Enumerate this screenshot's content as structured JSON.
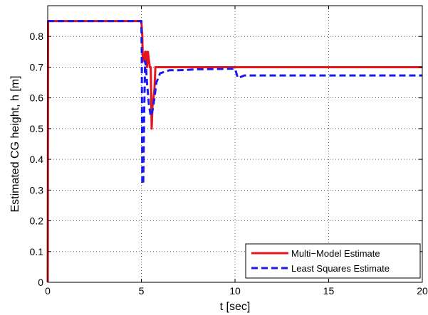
{
  "chart_data": {
    "type": "line",
    "title": "",
    "xlabel": "t [sec]",
    "ylabel": "Estimated CG height,  h [m]",
    "xlim": [
      0,
      20
    ],
    "ylim": [
      0,
      0.9
    ],
    "xticks": [
      0,
      5,
      10,
      15,
      20
    ],
    "yticks": [
      0,
      0.1,
      0.2,
      0.3,
      0.4,
      0.5,
      0.6,
      0.7,
      0.8
    ],
    "grid": true,
    "legend_position": "bottom-right",
    "series": [
      {
        "name": "Multi−Model Estimate",
        "color": "#e8141b",
        "style": "solid",
        "x": [
          0,
          0.02,
          5.0,
          5.05,
          5.08,
          5.15,
          5.2,
          5.25,
          5.3,
          5.35,
          5.45,
          5.5,
          5.55,
          5.6,
          5.65,
          5.7,
          5.75,
          6.0,
          20
        ],
        "y": [
          0,
          0.85,
          0.85,
          0.8,
          0.72,
          0.72,
          0.75,
          0.75,
          0.7,
          0.75,
          0.7,
          0.7,
          0.5,
          0.58,
          0.6,
          0.63,
          0.7,
          0.7,
          0.7
        ]
      },
      {
        "name": "Least Squares Estimate",
        "color": "#1a1aee",
        "style": "dashed",
        "x": [
          0,
          5.0,
          5.02,
          5.05,
          5.1,
          5.15,
          5.2,
          5.25,
          5.3,
          5.4,
          5.5,
          5.6,
          5.7,
          5.8,
          6.0,
          6.5,
          7.0,
          8.0,
          10.0,
          10.15,
          10.3,
          10.5,
          11.0,
          15.0,
          20.0
        ],
        "y": [
          0.85,
          0.85,
          0.75,
          0.32,
          0.32,
          0.55,
          0.72,
          0.7,
          0.65,
          0.58,
          0.54,
          0.56,
          0.6,
          0.65,
          0.68,
          0.69,
          0.69,
          0.693,
          0.695,
          0.665,
          0.668,
          0.673,
          0.673,
          0.673,
          0.673
        ]
      }
    ]
  }
}
